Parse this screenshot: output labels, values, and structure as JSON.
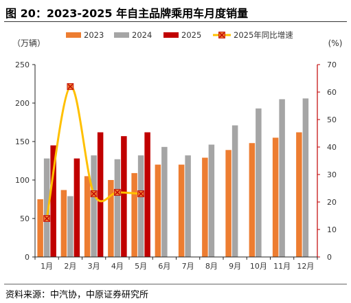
{
  "figure": {
    "title": "图 20：2023-2025 年自主品牌乘用车月度销量",
    "source": "资料来源：中汽协，中原证券研究所"
  },
  "colors": {
    "s2023": "#ED7D31",
    "s2024": "#A5A5A5",
    "s2025": "#C00000",
    "growth_line": "#FFC000",
    "growth_marker_fill": "#ED7D31",
    "growth_marker_x": "#C00000",
    "right_axis": "#C00000"
  },
  "chart_data": {
    "type": "bar",
    "categories": [
      "1月",
      "2月",
      "3月",
      "4月",
      "5月",
      "6月",
      "7月",
      "8月",
      "9月",
      "10月",
      "11月",
      "12月"
    ],
    "series": [
      {
        "name": "2023",
        "axis": "left",
        "values": [
          75,
          87,
          105,
          100,
          109,
          120,
          120,
          129,
          139,
          148,
          155,
          162
        ]
      },
      {
        "name": "2024",
        "axis": "left",
        "values": [
          128,
          79,
          132,
          127,
          132,
          143,
          132,
          146,
          171,
          193,
          205,
          206
        ]
      },
      {
        "name": "2025",
        "axis": "left",
        "values": [
          145,
          128,
          162,
          157,
          162,
          null,
          null,
          null,
          null,
          null,
          null,
          null
        ]
      },
      {
        "name": "2025年同比增速",
        "type": "line",
        "axis": "right",
        "values": [
          14,
          62,
          23,
          23.5,
          23,
          null,
          null,
          null,
          null,
          null,
          null,
          null
        ]
      }
    ],
    "left_axis": {
      "unit": "（万辆）",
      "ylim": [
        0,
        250
      ],
      "ticks": [
        0,
        50,
        100,
        150,
        200,
        250
      ]
    },
    "right_axis": {
      "unit": "(%)",
      "ylim": [
        0,
        70
      ],
      "ticks": [
        0,
        10,
        20,
        30,
        40,
        50,
        60,
        70
      ]
    },
    "legend": {
      "position": "top",
      "entries": [
        "2023",
        "2024",
        "2025",
        "2025年同比增速"
      ]
    },
    "grid": false
  }
}
